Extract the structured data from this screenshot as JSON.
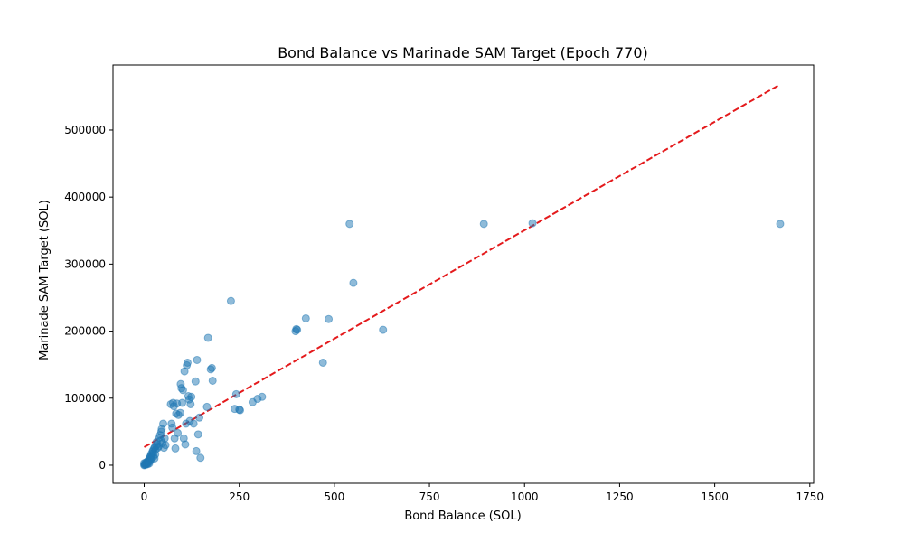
{
  "chart_data": {
    "type": "scatter",
    "title": "Bond Balance vs Marinade SAM Target (Epoch 770)",
    "xlabel": "Bond Balance (SOL)",
    "ylabel": "Marinade SAM Target (SOL)",
    "xlim": [
      -82,
      1760
    ],
    "ylim": [
      -27000,
      597000
    ],
    "xticks": [
      0,
      250,
      500,
      750,
      1000,
      1250,
      1500,
      1750
    ],
    "yticks": [
      0,
      100000,
      200000,
      300000,
      400000,
      500000
    ],
    "grid": false,
    "colors": {
      "points": "#1f77b4",
      "trend": "#e41a1c"
    },
    "trendline": {
      "x": [
        0,
        1672
      ],
      "y": [
        27000,
        568000
      ],
      "style": "dashed"
    },
    "points": [
      [
        0,
        0
      ],
      [
        1,
        1000
      ],
      [
        2,
        500
      ],
      [
        3,
        2000
      ],
      [
        0,
        3000
      ],
      [
        5,
        1000
      ],
      [
        4,
        4000
      ],
      [
        6,
        2000
      ],
      [
        8,
        5000
      ],
      [
        7,
        3000
      ],
      [
        10,
        6000
      ],
      [
        9,
        1500
      ],
      [
        12,
        8000
      ],
      [
        11,
        4000
      ],
      [
        14,
        10000
      ],
      [
        13,
        2500
      ],
      [
        15,
        6000
      ],
      [
        16,
        12000
      ],
      [
        18,
        9000
      ],
      [
        17,
        14000
      ],
      [
        19,
        17000
      ],
      [
        20,
        11000
      ],
      [
        22,
        20000
      ],
      [
        21,
        15000
      ],
      [
        23,
        22000
      ],
      [
        24,
        18000
      ],
      [
        25,
        13000
      ],
      [
        26,
        25000
      ],
      [
        27,
        10000
      ],
      [
        28,
        27000
      ],
      [
        30,
        23000
      ],
      [
        29,
        16000
      ],
      [
        32,
        29000
      ],
      [
        34,
        31000
      ],
      [
        36,
        26000
      ],
      [
        33,
        35000
      ],
      [
        38,
        28000
      ],
      [
        40,
        41000
      ],
      [
        42,
        45000
      ],
      [
        44,
        37000
      ],
      [
        45,
        50000
      ],
      [
        46,
        54000
      ],
      [
        48,
        33000
      ],
      [
        50,
        62000
      ],
      [
        52,
        26000
      ],
      [
        54,
        40000
      ],
      [
        56,
        30000
      ],
      [
        70,
        91000
      ],
      [
        72,
        62000
      ],
      [
        74,
        56000
      ],
      [
        76,
        93000
      ],
      [
        78,
        88000
      ],
      [
        80,
        40000
      ],
      [
        82,
        25000
      ],
      [
        84,
        77000
      ],
      [
        86,
        92000
      ],
      [
        88,
        48000
      ],
      [
        90,
        75000
      ],
      [
        95,
        78000
      ],
      [
        96,
        121000
      ],
      [
        98,
        115000
      ],
      [
        100,
        93000
      ],
      [
        102,
        112000
      ],
      [
        104,
        40000
      ],
      [
        106,
        140000
      ],
      [
        108,
        31000
      ],
      [
        110,
        62000
      ],
      [
        112,
        149000
      ],
      [
        114,
        153000
      ],
      [
        116,
        103000
      ],
      [
        118,
        98000
      ],
      [
        120,
        66000
      ],
      [
        122,
        91000
      ],
      [
        124,
        102000
      ],
      [
        130,
        62000
      ],
      [
        135,
        125000
      ],
      [
        137,
        21000
      ],
      [
        139,
        157000
      ],
      [
        142,
        46000
      ],
      [
        145,
        71000
      ],
      [
        148,
        11000
      ],
      [
        165,
        87000
      ],
      [
        168,
        190000
      ],
      [
        175,
        143000
      ],
      [
        178,
        145000
      ],
      [
        180,
        126000
      ],
      [
        228,
        245000
      ],
      [
        238,
        84000
      ],
      [
        242,
        106000
      ],
      [
        250,
        83000
      ],
      [
        252,
        82000
      ],
      [
        285,
        94000
      ],
      [
        298,
        99000
      ],
      [
        310,
        102000
      ],
      [
        398,
        200000
      ],
      [
        400,
        203000
      ],
      [
        402,
        202000
      ],
      [
        425,
        219000
      ],
      [
        470,
        153000
      ],
      [
        485,
        218000
      ],
      [
        540,
        360000
      ],
      [
        550,
        272000
      ],
      [
        628,
        202000
      ],
      [
        893,
        360000
      ],
      [
        1021,
        361000
      ],
      [
        1672,
        360000
      ]
    ]
  }
}
